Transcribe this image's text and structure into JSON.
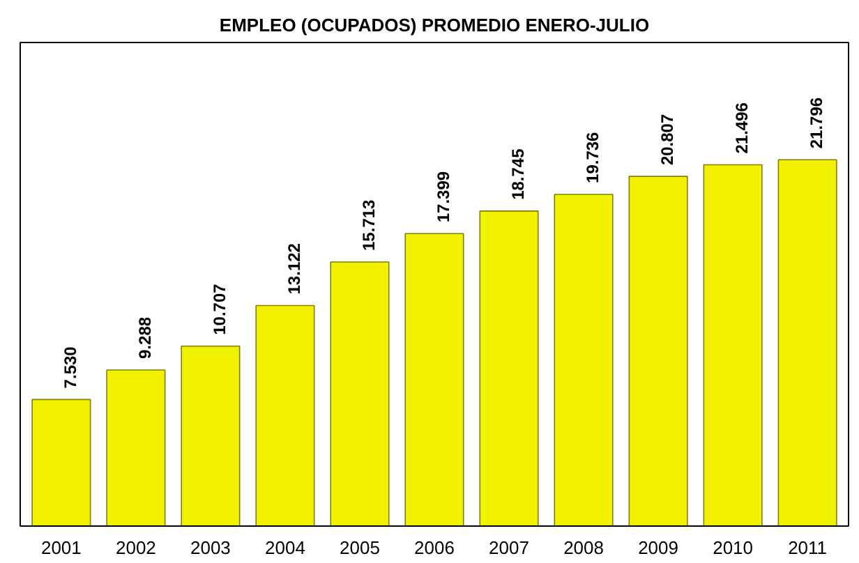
{
  "chart_data": {
    "type": "bar",
    "title": "EMPLEO (OCUPADOS) PROMEDIO ENERO-JULIO",
    "categories": [
      "2001",
      "2002",
      "2003",
      "2004",
      "2005",
      "2006",
      "2007",
      "2008",
      "2009",
      "2010",
      "2011"
    ],
    "values": [
      7530,
      9288,
      10707,
      13122,
      15713,
      17399,
      18745,
      19736,
      20807,
      21496,
      21796
    ],
    "value_labels": [
      "7.530",
      "9.288",
      "10.707",
      "13.122",
      "15.713",
      "17.399",
      "18.745",
      "19.736",
      "20.807",
      "21.496",
      "21.796"
    ],
    "color": "#f2f200"
  }
}
